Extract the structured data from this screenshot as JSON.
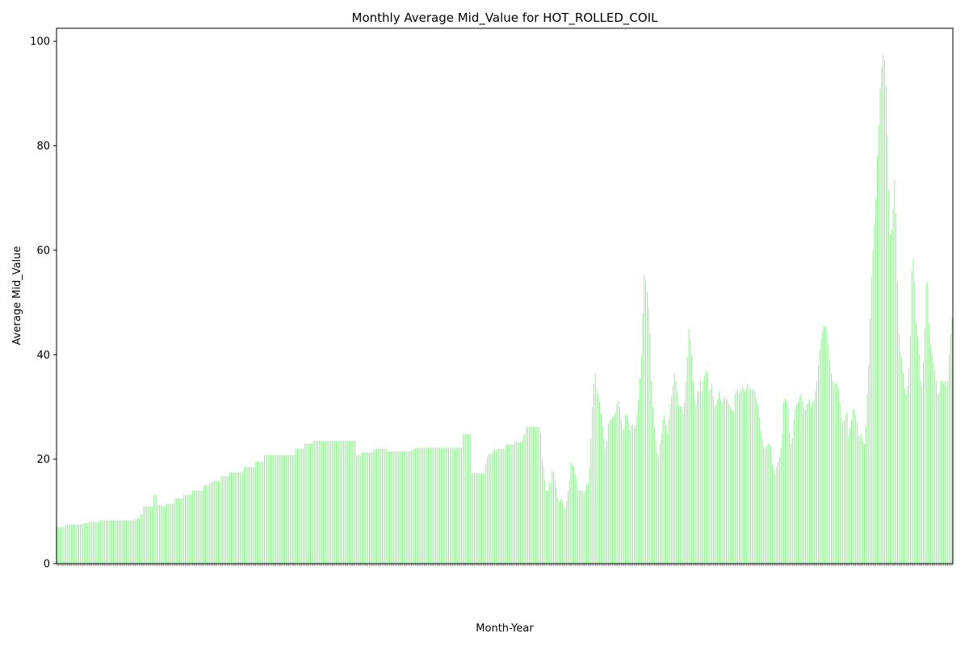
{
  "chart_data": {
    "type": "bar",
    "title": "Monthly Average Mid_Value for HOT_ROLLED_COIL",
    "xlabel": "Month-Year",
    "ylabel": "Average Mid_Value",
    "ylim": [
      0,
      102.5
    ],
    "yticks": [
      0,
      20,
      40,
      60,
      80,
      100
    ],
    "bar_color": "#90ee90",
    "grid": false,
    "legend": "none",
    "series": [
      {
        "values": [
          7,
          7,
          7,
          7,
          7,
          7,
          7.5,
          7.5,
          7.5,
          7.5,
          7.5,
          7.5,
          7.5,
          7.5,
          7.5,
          7.5,
          7.5,
          7.5,
          7.7,
          7.7,
          7.7,
          7.7,
          8,
          8,
          8,
          8,
          8,
          8,
          8,
          8,
          8.3,
          8.3,
          8.3,
          8.3,
          8.3,
          8.3,
          8.3,
          8.3,
          8.3,
          8.3,
          8.3,
          8.3,
          8.3,
          8.3,
          8.3,
          8.3,
          8.3,
          8.3,
          8.3,
          8.3,
          8.3,
          8.3,
          8.3,
          8.3,
          8.5,
          8.5,
          8.7,
          8.7,
          9.5,
          9.5,
          11,
          11,
          11,
          11,
          11,
          11,
          11,
          13.2,
          13.2,
          13.2,
          11.2,
          11.2,
          11.2,
          11,
          11,
          11,
          11.5,
          11.5,
          11.5,
          11.5,
          11.5,
          11.5,
          12.5,
          12.5,
          12.5,
          12.5,
          12.5,
          12.5,
          13.2,
          13.2,
          13.2,
          13.2,
          13.2,
          13.2,
          14,
          14,
          14,
          14,
          14,
          14,
          14,
          14,
          15,
          15,
          15,
          15,
          15.5,
          15.5,
          15.8,
          15.8,
          15.8,
          15.8,
          15.8,
          15.8,
          16.7,
          16.7,
          16.7,
          16.7,
          16.7,
          16.7,
          17.5,
          17.5,
          17.5,
          17.5,
          17.5,
          17.5,
          17.5,
          17.5,
          17.5,
          17.5,
          18.5,
          18.5,
          18.5,
          18.5,
          18.5,
          18.5,
          18.5,
          18.5,
          19.5,
          19.5,
          19.5,
          19.5,
          19.5,
          19.5,
          20.8,
          20.8,
          20.8,
          20.8,
          20.8,
          20.8,
          20.8,
          20.8,
          20.8,
          20.8,
          20.8,
          20.8,
          20.8,
          20.8,
          20.8,
          20.8,
          20.8,
          20.8,
          20.8,
          20.8,
          20.8,
          20.8,
          22,
          22,
          22,
          22,
          22,
          22,
          23,
          23,
          23,
          23,
          23,
          23,
          23.5,
          23.5,
          23.5,
          23.5,
          23.5,
          23.5,
          23.5,
          23.5,
          23.5,
          23.5,
          23.5,
          23.5,
          23.5,
          23.5,
          23.5,
          23.5,
          23.5,
          23.5,
          23.5,
          23.5,
          23.5,
          23.5,
          23.5,
          23.5,
          23.5,
          23.5,
          23.5,
          23.5,
          23.5,
          23.5,
          20.8,
          20.8,
          20.8,
          20.8,
          21.3,
          21.3,
          21.3,
          21.3,
          21.3,
          21.3,
          21.3,
          21.3,
          21.8,
          21.8,
          22,
          22,
          22,
          22,
          22,
          22,
          22,
          22,
          21.5,
          21.5,
          21.5,
          21.5,
          21.5,
          21.5,
          21.5,
          21.5,
          21.5,
          21.5,
          21.5,
          21.5,
          21.5,
          21.5,
          21.5,
          21.5,
          21.7,
          21.7,
          22,
          22,
          22.2,
          22.2,
          22.2,
          22.2,
          22.2,
          22.2,
          22.2,
          22.2,
          22.2,
          22.2,
          22.2,
          22.2,
          22.2,
          22.2,
          22.2,
          22.2,
          22.2,
          22.2,
          22.2,
          22.2,
          22.2,
          22.2,
          22.2,
          22.2,
          22.2,
          22.2,
          22.2,
          22.2,
          22.2,
          22.2,
          22.2,
          22.2,
          24.8,
          24.8,
          24.8,
          24.8,
          24.8,
          24.8,
          17.3,
          17.3,
          17.3,
          17.3,
          17.3,
          17.3,
          17.3,
          17.3,
          17.3,
          17.3,
          19,
          20.5,
          21,
          21,
          21,
          21.5,
          21.8,
          21.8,
          22,
          22,
          22,
          22,
          22,
          22,
          22.8,
          22.8,
          22.8,
          22.8,
          22.8,
          22.8,
          23.3,
          23.3,
          23.3,
          23.3,
          23.3,
          23.3,
          24.5,
          24.8,
          26.2,
          26.2,
          26.2,
          26.2,
          26.2,
          26.2,
          26.2,
          26.2,
          26.2,
          26.2,
          25,
          20,
          18.5,
          16,
          14,
          14,
          15.5,
          15.5,
          17.7,
          17.5,
          16,
          14.5,
          12.5,
          12,
          12.3,
          12,
          11,
          10.5,
          12,
          14,
          15.8,
          19.5,
          19,
          18.5,
          17,
          16,
          14,
          14,
          14,
          14,
          13.5,
          14,
          15,
          15.5,
          18.5,
          24,
          30,
          34.5,
          36.5,
          33.5,
          32.5,
          31,
          28.8,
          26.5,
          24,
          22,
          23.5,
          26.8,
          27.5,
          27.5,
          28,
          28.5,
          29,
          30.5,
          31.2,
          30,
          27.5,
          25.5,
          26,
          28.5,
          28.5,
          27,
          25.5,
          26.5,
          26.5,
          26,
          26.5,
          28.5,
          31.5,
          35.5,
          39.8,
          48,
          55.3,
          54,
          52,
          49,
          44,
          35,
          30,
          26,
          23.5,
          21,
          20.5,
          23,
          25,
          27.5,
          28.5,
          26.5,
          25,
          27.5,
          30.5,
          32,
          34,
          36.5,
          35,
          33,
          30.5,
          30,
          30,
          28.5,
          31,
          35,
          39.5,
          45,
          43,
          40,
          35,
          31.5,
          30.5,
          33,
          33,
          35,
          33,
          35,
          36,
          37,
          36.5,
          33,
          33.5,
          34.5,
          32,
          30,
          30.5,
          31.5,
          33,
          31.5,
          31,
          31.5,
          32,
          31.5,
          31.5,
          30.5,
          30,
          29.5,
          29,
          32.5,
          33,
          33.5,
          32.5,
          33,
          34,
          33.5,
          33,
          33.5,
          34.3,
          33.5,
          33.5,
          33.3,
          33.5,
          33,
          31.5,
          30.5,
          28,
          25.5,
          24,
          22.5,
          22,
          22.5,
          23,
          23,
          22.5,
          19,
          18,
          17,
          18.5,
          19.5,
          20.5,
          22,
          25,
          31,
          31.5,
          31,
          30,
          25,
          23,
          24,
          27.5,
          29.5,
          30.5,
          31,
          32,
          32.5,
          31,
          30,
          29.5,
          30.5,
          31,
          31.5,
          30,
          31,
          31.5,
          33,
          35,
          38,
          41,
          43,
          44.5,
          45.5,
          45.5,
          44,
          42,
          39,
          36.5,
          35,
          34.5,
          34.5,
          34.5,
          33.5,
          31,
          28,
          27,
          27.5,
          28.5,
          29,
          24.5,
          26,
          27.5,
          29.5,
          29.5,
          28.5,
          27,
          24.5,
          24.5,
          25,
          23.5,
          23,
          26.5,
          32.5,
          38,
          47,
          55,
          60,
          65,
          70,
          78,
          84,
          91,
          95,
          97.5,
          96.5,
          91.5,
          82,
          71.5,
          63,
          64,
          68,
          73.5,
          67,
          54,
          44,
          40.5,
          39.5,
          36.5,
          33.5,
          32.5,
          34,
          37.5,
          43.5,
          56,
          58.5,
          54,
          46,
          43.5,
          40,
          35,
          34,
          38.5,
          45,
          53.5,
          54,
          46,
          42,
          40,
          38.5,
          37,
          35,
          32.5,
          33,
          35,
          35,
          34.5,
          35,
          34,
          35,
          40,
          44,
          47
        ]
      }
    ]
  }
}
